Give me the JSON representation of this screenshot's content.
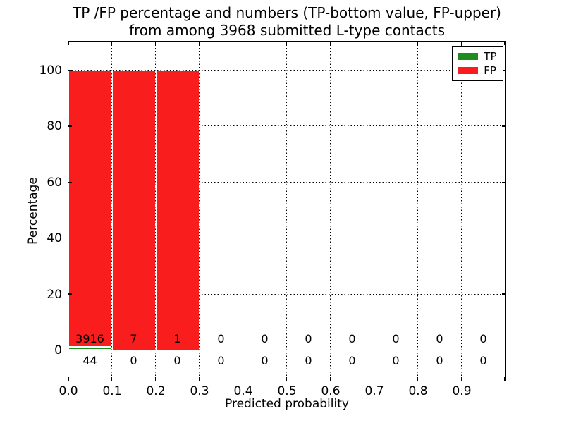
{
  "figure": {
    "title_line1": "TP /FP percentage and numbers (TP-bottom value, FP-upper)",
    "title_line2": "from among 3968 submitted L-type contacts",
    "xlabel": "Predicted probability",
    "ylabel": "Percentage"
  },
  "legend": {
    "items": [
      {
        "label": "TP",
        "color": "#1e8c1e"
      },
      {
        "label": "FP",
        "color": "#f91d1d"
      }
    ]
  },
  "axes": {
    "yticks": [
      {
        "label": "100",
        "value": 100
      },
      {
        "label": "80",
        "value": 80
      },
      {
        "label": "60",
        "value": 60
      },
      {
        "label": "40",
        "value": 40
      },
      {
        "label": "20",
        "value": 20
      },
      {
        "label": "0",
        "value": 0
      }
    ],
    "xticks": [
      {
        "label": "0.0",
        "bin": 0
      },
      {
        "label": "0.1",
        "bin": 1
      },
      {
        "label": "0.2",
        "bin": 2
      },
      {
        "label": "0.3",
        "bin": 3
      },
      {
        "label": "0.4",
        "bin": 4
      },
      {
        "label": "0.5",
        "bin": 5
      },
      {
        "label": "0.6",
        "bin": 6
      },
      {
        "label": "0.7",
        "bin": 7
      },
      {
        "label": "0.8",
        "bin": 8
      },
      {
        "label": "0.9",
        "bin": 9
      }
    ]
  },
  "chart_data": {
    "type": "bar",
    "stacked": true,
    "title": "TP /FP percentage and numbers (TP-bottom value, FP-upper) from among 3968 submitted L-type contacts",
    "xlabel": "Predicted probability",
    "ylabel": "Percentage",
    "total_contacts": 3968,
    "bin_edges": [
      0.0,
      0.1,
      0.2,
      0.3,
      0.4,
      0.5,
      0.6,
      0.7,
      0.8,
      0.9,
      1.0
    ],
    "bin_labels": [
      "0.0-0.1",
      "0.1-0.2",
      "0.2-0.3",
      "0.3-0.4",
      "0.4-0.5",
      "0.5-0.6",
      "0.6-0.7",
      "0.7-0.8",
      "0.8-0.9",
      "0.9-1.0"
    ],
    "series": [
      {
        "name": "TP",
        "color": "#1e8c1e",
        "counts": [
          44,
          0,
          0,
          0,
          0,
          0,
          0,
          0,
          0,
          0
        ],
        "percentages": [
          1.11,
          0,
          0,
          0,
          0,
          0,
          0,
          0,
          0,
          0
        ]
      },
      {
        "name": "FP",
        "color": "#f91d1d",
        "counts": [
          3916,
          7,
          1,
          0,
          0,
          0,
          0,
          0,
          0,
          0
        ],
        "percentages": [
          98.89,
          100,
          100,
          0,
          0,
          0,
          0,
          0,
          0,
          0
        ]
      }
    ],
    "ylim": [
      -11,
      110.5
    ],
    "xlim": [
      0,
      1
    ],
    "grid": "dotted",
    "legend_position": "upper right"
  }
}
